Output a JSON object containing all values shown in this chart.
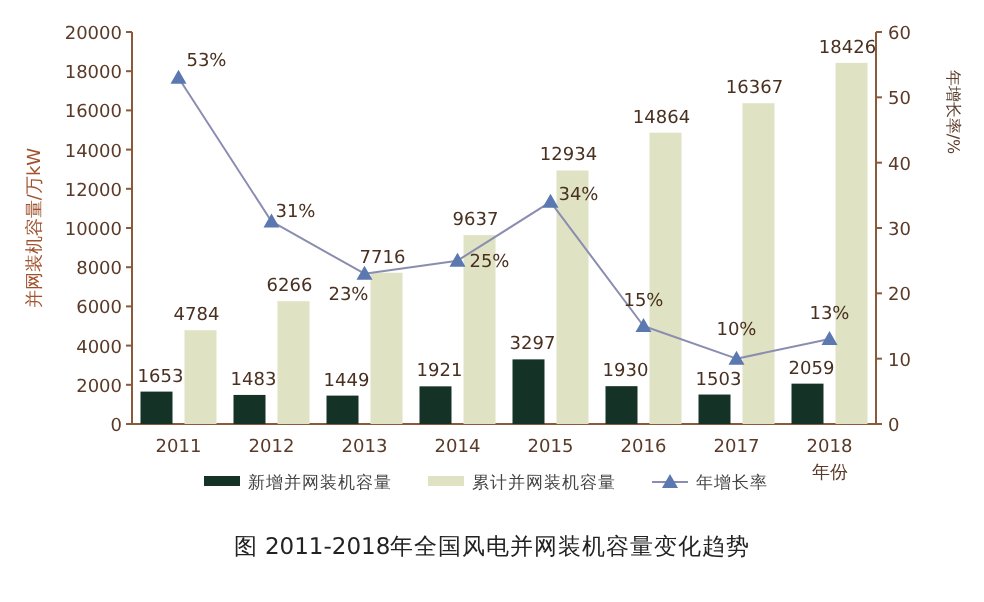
{
  "chart_data": {
    "type": "bar",
    "title": "图 2011-2018年全国风电并网装机容量变化趋势",
    "xlabel": "年份",
    "ylabel": "并网装机容量/万kW",
    "y2label": "年增长率/%",
    "categories": [
      "2011",
      "2012",
      "2013",
      "2014",
      "2015",
      "2016",
      "2017",
      "2018"
    ],
    "series": [
      {
        "name": "新增并网装机容量",
        "color": "#143226",
        "values": [
          1653,
          1483,
          1449,
          1921,
          3297,
          1930,
          1503,
          2059
        ]
      },
      {
        "name": "累计并网装机容量",
        "color": "#dfe2c3",
        "values": [
          4784,
          6266,
          7716,
          9637,
          12934,
          14864,
          16367,
          18426
        ]
      },
      {
        "name": "年增长率",
        "type": "line",
        "axis": "y2",
        "color": "#8a8db0",
        "marker": "triangle",
        "values": [
          53,
          31,
          23,
          25,
          34,
          15,
          10,
          13
        ],
        "value_labels": [
          "53%",
          "31%",
          "23%",
          "25%",
          "34%",
          "15%",
          "10%",
          "13%"
        ]
      }
    ],
    "ylim": [
      0,
      20000
    ],
    "yticks": [
      0,
      2000,
      4000,
      6000,
      8000,
      10000,
      12000,
      14000,
      16000,
      18000,
      20000
    ],
    "y2lim": [
      0,
      60
    ],
    "y2ticks": [
      0,
      10,
      20,
      30,
      40,
      50,
      60
    ],
    "data_labels": true,
    "legend": "bottom"
  }
}
